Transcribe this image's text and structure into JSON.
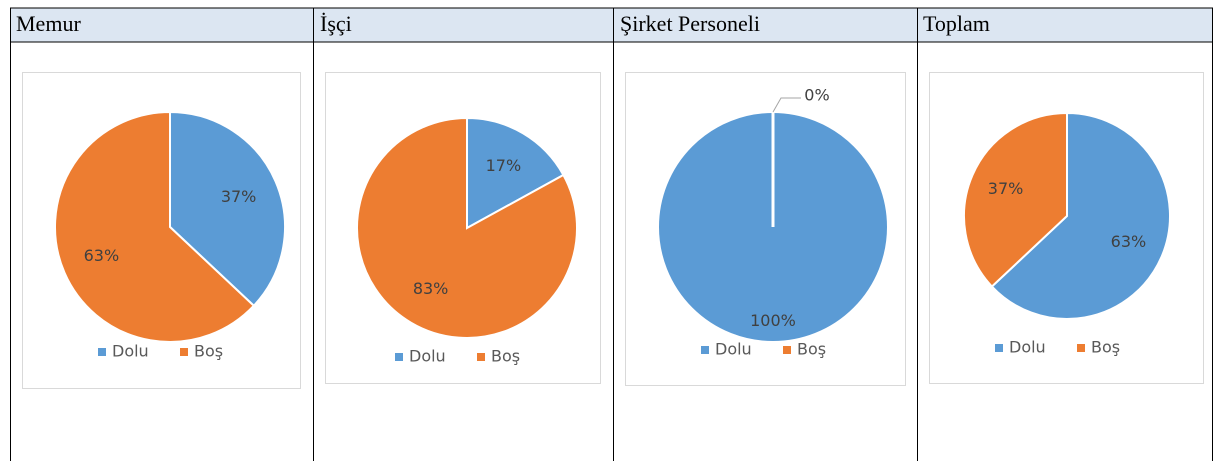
{
  "chart_data": [
    {
      "type": "pie",
      "title": "Memur",
      "categories": [
        "Dolu",
        "Boş"
      ],
      "values": [
        37,
        63
      ],
      "value_labels": [
        "37%",
        "63%"
      ],
      "colors": [
        "#5b9bd5",
        "#ed7d31"
      ],
      "legend": "bottom"
    },
    {
      "type": "pie",
      "title": "İşçi",
      "categories": [
        "Dolu",
        "Boş"
      ],
      "values": [
        17,
        83
      ],
      "value_labels": [
        "17%",
        "83%"
      ],
      "colors": [
        "#5b9bd5",
        "#ed7d31"
      ],
      "legend": "bottom"
    },
    {
      "type": "pie",
      "title": "Şirket Personeli",
      "categories": [
        "Dolu",
        "Boş"
      ],
      "values": [
        100,
        0
      ],
      "value_labels": [
        "100%",
        "0%"
      ],
      "colors": [
        "#5b9bd5",
        "#ed7d31"
      ],
      "legend": "bottom"
    },
    {
      "type": "pie",
      "title": "Toplam",
      "categories": [
        "Dolu",
        "Boş"
      ],
      "values": [
        63,
        37
      ],
      "value_labels": [
        "63%",
        "37%"
      ],
      "colors": [
        "#5b9bd5",
        "#ed7d31"
      ],
      "legend": "bottom"
    }
  ]
}
